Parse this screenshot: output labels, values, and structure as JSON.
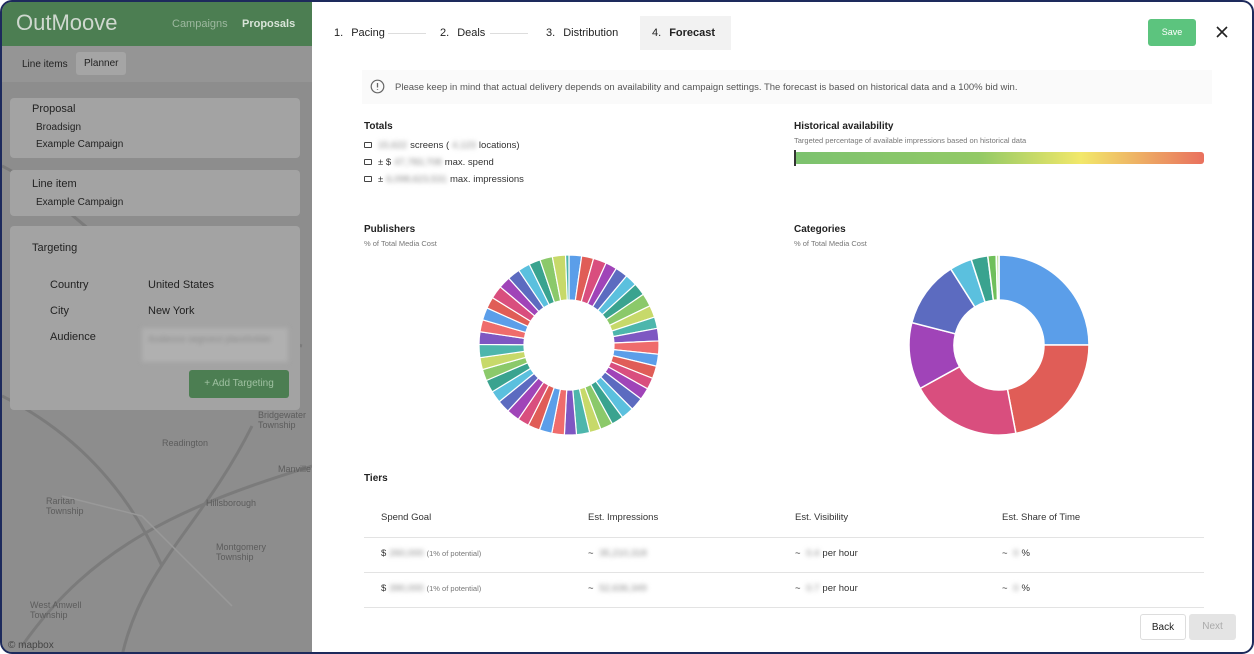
{
  "app": {
    "logo": "OutMoove",
    "nav": [
      "Campaigns",
      "Proposals"
    ],
    "tabs": [
      "Line items",
      "Planner"
    ]
  },
  "sidebar": {
    "proposal": {
      "title": "Proposal",
      "items": [
        "Broadsign",
        "Example Campaign"
      ]
    },
    "line_item": {
      "title": "Line item",
      "items": [
        "Example Campaign"
      ]
    },
    "targeting": {
      "title": "Targeting",
      "rows": [
        [
          "Country",
          "United States"
        ],
        [
          "City",
          "New York"
        ],
        [
          "Audience",
          "Audience segment placeholder"
        ]
      ],
      "button": "+ Add Targeting"
    },
    "map_labels": [
      "Readington",
      "Hillsborough",
      "Raritan Township",
      "Montgomery Township",
      "West Amwell Township",
      "Manville",
      "Bridgewater Township",
      "© mapbox"
    ]
  },
  "stepper": [
    {
      "n": "1.",
      "label": "Pacing"
    },
    {
      "n": "2.",
      "label": "Deals"
    },
    {
      "n": "3.",
      "label": "Distribution"
    },
    {
      "n": "4.",
      "label": "Forecast"
    }
  ],
  "save": "Save",
  "notice": "Please keep in mind that actual delivery depends on availability and campaign settings. The forecast is based on historical data and a 100% bid win.",
  "totals": {
    "title": "Totals",
    "lines": [
      [
        {
          "t": "15,622",
          "blur": true
        },
        {
          "t": "screens ("
        },
        {
          "t": "4,123",
          "blur": true
        },
        {
          "t": "locations)"
        }
      ],
      [
        {
          "t": "± $"
        },
        {
          "t": "47,783,708",
          "blur": true
        },
        {
          "t": "max. spend"
        }
      ],
      [
        {
          "t": "±"
        },
        {
          "t": "6,098,623,531",
          "blur": true
        },
        {
          "t": "max. impressions"
        }
      ]
    ]
  },
  "availability": {
    "title": "Historical availability",
    "subtitle": "Targeted percentage of available impressions based on historical data"
  },
  "chart_data": [
    {
      "type": "pie",
      "title": "Publishers",
      "subtitle": "% of Total Media Cost",
      "donut": true,
      "colors": [
        "#5b9ee9",
        "#e05d57",
        "#d94e7e",
        "#a044b8",
        "#5c6bc0",
        "#5bc0de",
        "#3aa38f",
        "#8bc96a",
        "#c7d96a",
        "#4db6ac",
        "#7e57c2",
        "#ef6c6c"
      ],
      "values": [
        2.2,
        2.1,
        2.3,
        2.0,
        2.2,
        2.1,
        2.2,
        2.3,
        2.1,
        2.0,
        2.2,
        2.3,
        2.1,
        2.2,
        2.0,
        2.1,
        2.3,
        2.2,
        2.1,
        2.2,
        2.0,
        2.3,
        2.1,
        2.2,
        2.2,
        2.1,
        2.0,
        2.3,
        2.2,
        2.1,
        2.2,
        2.0,
        2.1,
        2.3,
        2.2,
        2.1,
        2.2,
        2.0,
        2.3,
        2.1,
        2.2,
        2.1,
        2.0,
        2.2,
        2.3,
        0.6
      ]
    },
    {
      "type": "pie",
      "title": "Categories",
      "subtitle": "% of Total Media Cost",
      "donut": true,
      "colors": [
        "#5b9ee9",
        "#e05d57",
        "#d94e7e",
        "#a044b8",
        "#5c6bc0",
        "#5bc0de",
        "#3aa38f",
        "#6fbf5a",
        "#c5e1a5"
      ],
      "values": [
        25,
        22,
        20,
        12,
        12,
        4,
        3,
        1.5,
        0.5
      ]
    }
  ],
  "tiers": {
    "title": "Tiers",
    "headers": [
      "Spend Goal",
      "Est. Impressions",
      "Est. Visibility",
      "Est. Share of Time"
    ],
    "rows": [
      [
        [
          {
            "t": "$"
          },
          {
            "t": "260,000",
            "blur": true
          },
          {
            "t": "(1% of potential)",
            "small": true
          }
        ],
        [
          {
            "t": "~ "
          },
          {
            "t": "35,210,318",
            "blur": true
          }
        ],
        [
          {
            "t": "~ "
          },
          {
            "t": "0.4",
            "blur": true
          },
          {
            "t": "per hour"
          }
        ],
        [
          {
            "t": "~ "
          },
          {
            "t": "0",
            "blur": true
          },
          {
            "t": "%"
          }
        ]
      ],
      [
        [
          {
            "t": "$"
          },
          {
            "t": "390,000",
            "blur": true
          },
          {
            "t": "(1% of potential)",
            "small": true
          }
        ],
        [
          {
            "t": "~ "
          },
          {
            "t": "52,636,349",
            "blur": true
          }
        ],
        [
          {
            "t": "~ "
          },
          {
            "t": "0.7",
            "blur": true
          },
          {
            "t": "per hour"
          }
        ],
        [
          {
            "t": "~ "
          },
          {
            "t": "0",
            "blur": true
          },
          {
            "t": "%"
          }
        ]
      ]
    ]
  },
  "buttons": {
    "back": "Back",
    "next": "Next"
  }
}
